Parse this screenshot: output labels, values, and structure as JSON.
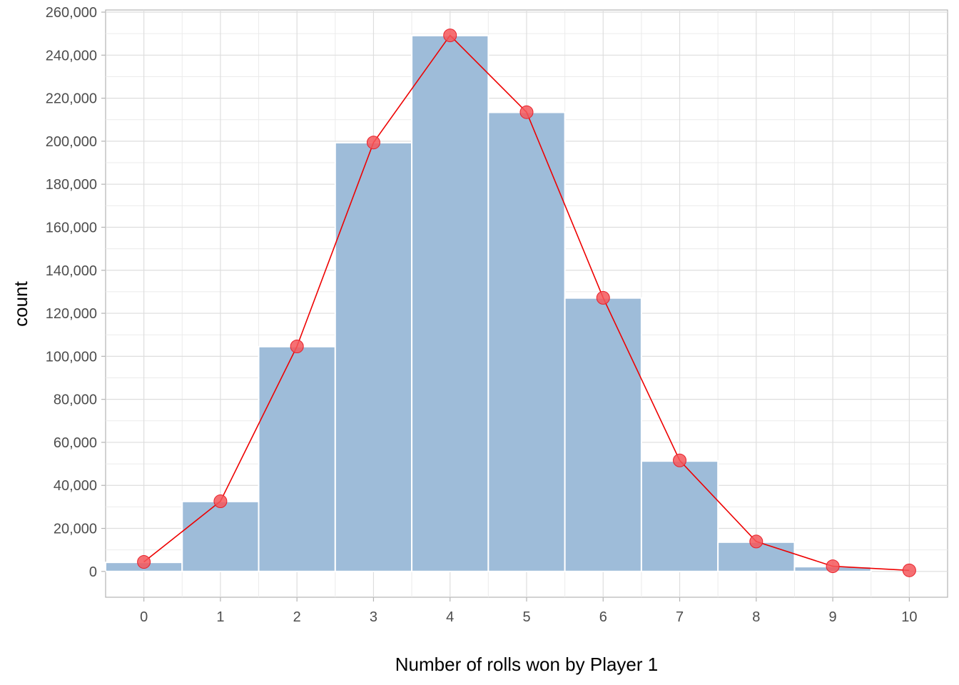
{
  "chart_data": {
    "type": "bar",
    "xlabel": "Number of rolls won by Player 1",
    "ylabel": "count",
    "categories": [
      0,
      1,
      2,
      3,
      4,
      5,
      6,
      7,
      8,
      9,
      10
    ],
    "x_tick_labels": [
      "0",
      "1",
      "2",
      "3",
      "4",
      "5",
      "6",
      "7",
      "8",
      "9",
      "10"
    ],
    "y_tick_values": [
      0,
      20000,
      40000,
      60000,
      80000,
      100000,
      120000,
      140000,
      160000,
      180000,
      200000,
      220000,
      240000,
      260000
    ],
    "y_tick_labels": [
      "0",
      "20,000",
      "40,000",
      "60,000",
      "80,000",
      "100,000",
      "120,000",
      "140,000",
      "160,000",
      "180,000",
      "200,000",
      "220,000",
      "240,000",
      "260,000"
    ],
    "ylim": [
      -12000,
      261000
    ],
    "xlim": [
      -0.5,
      10.5
    ],
    "grid": true,
    "series": [
      {
        "kind": "bar",
        "color": "#9ebcd9",
        "values": [
          4200,
          32500,
          104500,
          199300,
          249100,
          213400,
          127100,
          51300,
          13600,
          2200,
          0
        ]
      },
      {
        "kind": "line+points",
        "color": "#ee0000",
        "point_color": "#f4575a",
        "values": [
          4400,
          32600,
          104600,
          199400,
          249200,
          213500,
          127200,
          51600,
          13900,
          2400,
          500
        ]
      }
    ]
  }
}
